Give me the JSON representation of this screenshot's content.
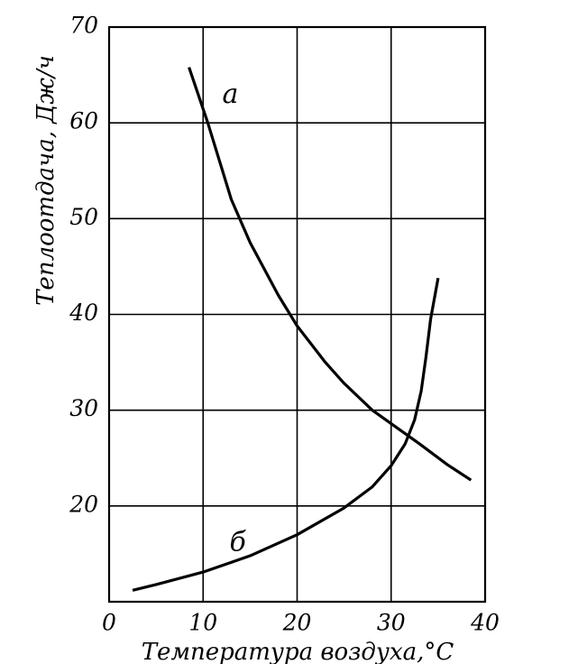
{
  "chart_data": {
    "type": "line",
    "xlabel": "Температура воздуха,°С",
    "ylabel": "Теплоотдача, Дж/ч",
    "xlim": [
      0,
      40
    ],
    "ylim": [
      10,
      70
    ],
    "xticks": [
      0,
      10,
      20,
      30,
      40
    ],
    "yticks": [
      20,
      30,
      40,
      50,
      60,
      70
    ],
    "grid": true,
    "series": [
      {
        "name": "а",
        "color": "#000000",
        "x": [
          8.5,
          10.5,
          13,
          15,
          18,
          20,
          23,
          25,
          28,
          30,
          33,
          36,
          38.5
        ],
        "values": [
          65.8,
          60,
          52,
          47.5,
          42,
          38.8,
          35,
          32.8,
          30,
          28.6,
          26.5,
          24.3,
          22.7
        ]
      },
      {
        "name": "б",
        "color": "#000000",
        "x": [
          2.5,
          5,
          10,
          15,
          20,
          25,
          28,
          30,
          31.5,
          32.5,
          33.2,
          33.7,
          34.2,
          35
        ],
        "values": [
          11.2,
          11.8,
          13.1,
          14.8,
          17,
          19.8,
          22,
          24.2,
          26.5,
          29,
          32,
          35.5,
          39.5,
          43.8
        ]
      }
    ]
  }
}
